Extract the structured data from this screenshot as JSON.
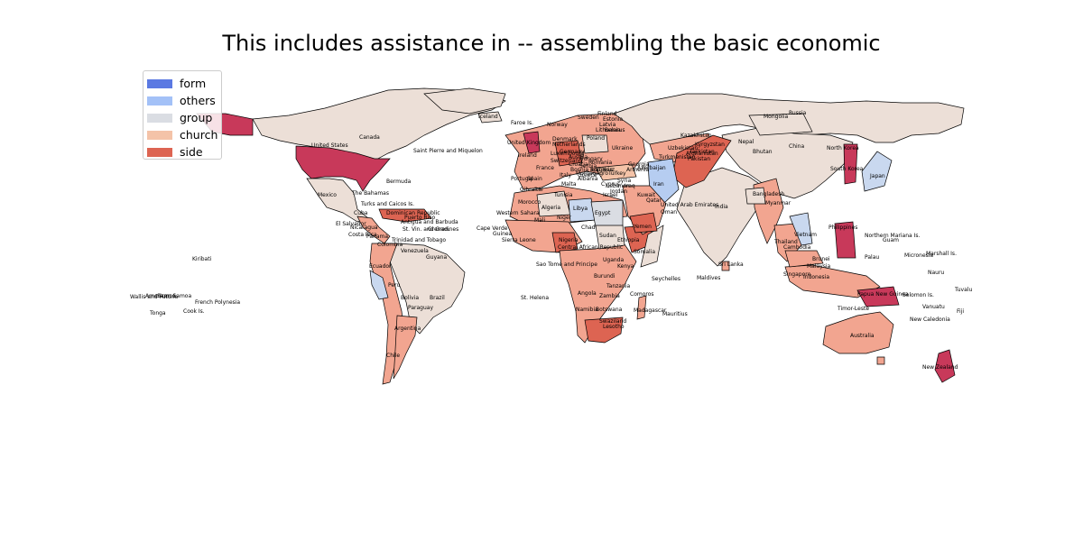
{
  "title": "This includes assistance in -- assembling the basic economic",
  "legend": [
    {
      "label": "form",
      "color": "#5b79e2"
    },
    {
      "label": "others",
      "color": "#a3c1f7"
    },
    {
      "label": "group",
      "color": "#dadde3"
    },
    {
      "label": "church",
      "color": "#f4c3a8"
    },
    {
      "label": "side",
      "color": "#dd6452"
    }
  ],
  "palette": {
    "beige": "#ecdfd7",
    "salmon": "#f2a590",
    "crimson": "#c8395a",
    "lightblue": "#c9d8ef",
    "midblue": "#b6cdf1",
    "red": "#dd6452"
  },
  "labels": [
    "United States",
    "Canada",
    "Mexico",
    "Bermuda",
    "The Bahamas",
    "Turks and Caicos Is.",
    "Cuba",
    "Dominican Republic",
    "Puerto Rico",
    "Antigua and Barbuda",
    "El Salvador",
    "Nicaragua",
    "Costa Rica",
    "Panama",
    "St. Vin. and Gren.",
    "Trinidad and Tobago",
    "Grenadines",
    "Venezuela",
    "Colombia",
    "Guyana",
    "Ecuador",
    "Peru",
    "Brazil",
    "Bolivia",
    "Paraguay",
    "Argentina",
    "Chile",
    "Kiribati",
    "Samoa",
    "Wallis and Futuna",
    "American Samoa",
    "French Polynesia",
    "Tonga",
    "Cook Is.",
    "Iceland",
    "Faroe Is.",
    "United Kingdom",
    "Ireland",
    "Norway",
    "Sweden",
    "Finland",
    "Denmark",
    "Netherlands",
    "Germany",
    "Poland",
    "Belarus",
    "Ukraine",
    "Luxembourg",
    "France",
    "Switzerland",
    "Italy",
    "Portugal",
    "Spain",
    "Gibraltar",
    "Greece",
    "Turkey",
    "Malta",
    "Morocco",
    "Algeria",
    "Tunisia",
    "Western Sahara",
    "Libya",
    "Egypt",
    "Mali",
    "Niger",
    "Chad",
    "Cape Verde",
    "Guinea",
    "Sierra Leone",
    "Nigeria",
    "Central African Republic",
    "Sudan",
    "Ethiopia",
    "Yemen",
    "Somalia",
    "Kenya",
    "Sao Tome and Principe",
    "Uganda",
    "Burundi",
    "Tanzania",
    "Angola",
    "Zambia",
    "Namibia",
    "Botswana",
    "Swaziland",
    "Lesotho",
    "Madagascar",
    "Mauritius",
    "Seychelles",
    "Comoros",
    "St. Helena",
    "Iraq",
    "Iran",
    "Kuwait",
    "Qatar",
    "United Arab Emirates",
    "Oman",
    "Afghanistan",
    "Pakistan",
    "Kazakhstan",
    "Uzbekistan",
    "Turkmenistan",
    "Kyrgyzstan",
    "Tajikistan",
    "Russia",
    "Mongolia",
    "China",
    "India",
    "Nepal",
    "Bhutan",
    "Bangladesh",
    "Myanmar",
    "Sri Lanka",
    "Maldives",
    "Thailand",
    "Cambodia",
    "Vietnam",
    "Philippines",
    "Malaysia",
    "Brunei",
    "Singapore",
    "Indonesia",
    "Timor-Leste",
    "Papua New Guinea",
    "Japan",
    "South Korea",
    "North Korea",
    "Northern Mariana Is.",
    "Guam",
    "Palau",
    "Micronesia",
    "Marshall Is.",
    "Nauru",
    "Solomon Is.",
    "Vanuatu",
    "Fiji",
    "New Caledonia",
    "Tuvalu",
    "Australia",
    "New Zealand",
    "Saint Pierre and Miquelon",
    "Jordan",
    "Israel",
    "Lebanon",
    "Syria",
    "Armenia",
    "Georgia",
    "Azerbaijan",
    "Latvia",
    "Lithuania",
    "Estonia",
    "Austria",
    "Hungary",
    "Romania",
    "Bulgaria",
    "Serbia",
    "Croatia",
    "Bosnia and Herz.",
    "Montenegro",
    "Albania",
    "Cyprus"
  ]
}
